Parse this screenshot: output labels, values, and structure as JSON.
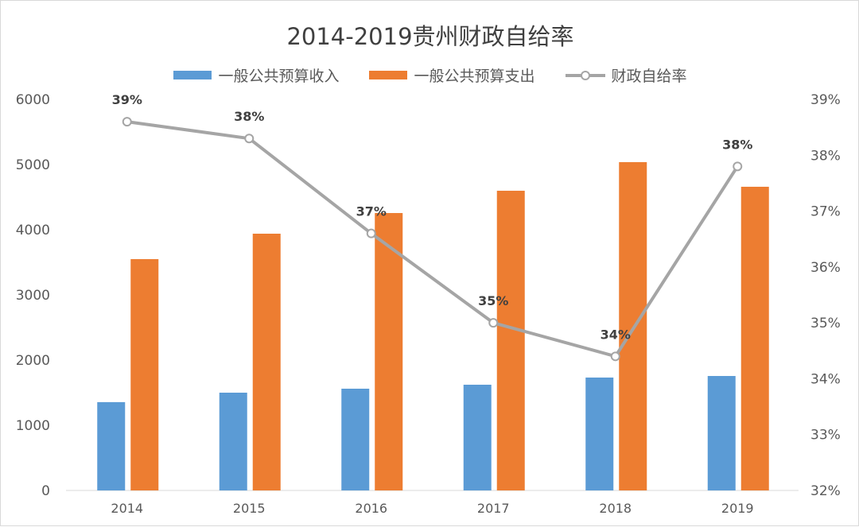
{
  "chart_data": {
    "type": "bar+line",
    "title": "2014-2019贵州财政自给率",
    "categories": [
      "2014",
      "2015",
      "2016",
      "2017",
      "2018",
      "2019"
    ],
    "series": [
      {
        "name": "一般公共预算收入",
        "type": "bar",
        "axis": "left",
        "color": "#5b9bd5",
        "values": [
          1355,
          1500,
          1561,
          1622,
          1732,
          1756
        ]
      },
      {
        "name": "一般公共预算支出",
        "type": "bar",
        "axis": "left",
        "color": "#ed7d31",
        "values": [
          3549,
          3939,
          4256,
          4598,
          5037,
          4659
        ]
      },
      {
        "name": "财政自给率",
        "type": "line",
        "axis": "right",
        "color": "#a5a5a5",
        "values": [
          38.6,
          38.3,
          36.6,
          35.0,
          34.4,
          37.8
        ],
        "data_labels": [
          "39%",
          "38%",
          "37%",
          "35%",
          "34%",
          "38%"
        ]
      }
    ],
    "left_axis": {
      "ylim": [
        0,
        6000
      ],
      "ticks": [
        "0",
        "1000",
        "2000",
        "3000",
        "4000",
        "5000",
        "6000"
      ]
    },
    "right_axis": {
      "ylim": [
        32,
        39
      ],
      "ticks": [
        "32%",
        "33%",
        "34%",
        "35%",
        "36%",
        "37%",
        "38%",
        "39%"
      ]
    },
    "grid": false,
    "legend_position": "top"
  }
}
